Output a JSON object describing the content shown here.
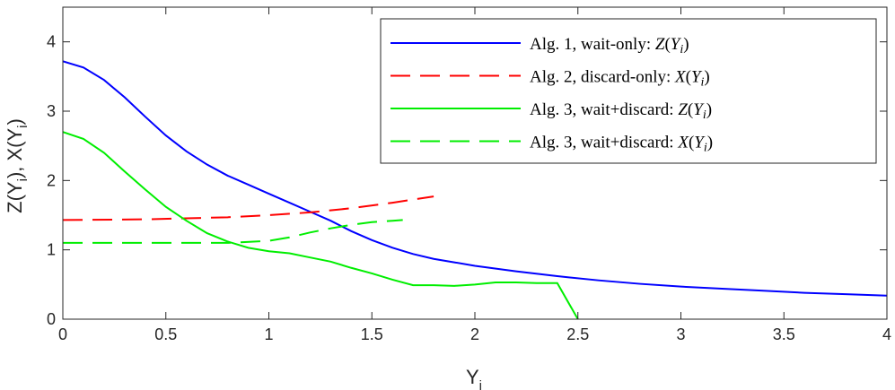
{
  "chart_data": {
    "type": "line",
    "title": "",
    "xlabel": "Y_i",
    "ylabel": "Z(Y_i), X(Y_i)",
    "xlim": [
      0,
      4
    ],
    "ylim": [
      0,
      4.5
    ],
    "xticks": [
      0,
      0.5,
      1,
      1.5,
      2,
      2.5,
      3,
      3.5,
      4
    ],
    "xtick_labels": [
      "0",
      "0.5",
      "1",
      "1.5",
      "2",
      "2.5",
      "3",
      "3.5",
      "4"
    ],
    "yticks": [
      0,
      1,
      2,
      3,
      4
    ],
    "ytick_labels": [
      "0",
      "1",
      "2",
      "3",
      "4"
    ],
    "grid": false,
    "legend_position": "top-right",
    "series": [
      {
        "name": "Alg. 1, wait-only: Z(Y_i)",
        "color": "#0000ff",
        "dash": "solid",
        "x": [
          0,
          0.1,
          0.2,
          0.3,
          0.4,
          0.5,
          0.6,
          0.7,
          0.8,
          0.9,
          1.0,
          1.1,
          1.2,
          1.3,
          1.4,
          1.5,
          1.6,
          1.7,
          1.8,
          1.9,
          2.0,
          2.2,
          2.4,
          2.6,
          2.8,
          3.0,
          3.2,
          3.4,
          3.6,
          3.8,
          4.0
        ],
        "y": [
          3.72,
          3.63,
          3.45,
          3.2,
          2.92,
          2.65,
          2.42,
          2.23,
          2.07,
          1.94,
          1.81,
          1.68,
          1.55,
          1.42,
          1.27,
          1.14,
          1.03,
          0.94,
          0.87,
          0.82,
          0.77,
          0.69,
          0.62,
          0.56,
          0.51,
          0.47,
          0.44,
          0.41,
          0.38,
          0.36,
          0.34
        ]
      },
      {
        "name": "Alg. 2, discard-only: X(Y_i)",
        "color": "#ff0000",
        "dash": "dashed",
        "x": [
          0,
          0.4,
          0.8,
          1.0,
          1.2,
          1.4,
          1.6,
          1.8
        ],
        "y": [
          1.43,
          1.44,
          1.47,
          1.5,
          1.54,
          1.6,
          1.68,
          1.77
        ]
      },
      {
        "name": "Alg. 3, wait+discard: Z(Y_i)",
        "color": "#00ee00",
        "dash": "solid",
        "x": [
          0,
          0.1,
          0.2,
          0.3,
          0.4,
          0.5,
          0.6,
          0.7,
          0.8,
          0.9,
          1.0,
          1.1,
          1.2,
          1.3,
          1.4,
          1.5,
          1.6,
          1.7,
          1.8,
          1.9,
          2.0,
          2.1,
          2.2,
          2.3,
          2.4,
          2.5
        ],
        "y": [
          2.7,
          2.6,
          2.4,
          2.13,
          1.87,
          1.62,
          1.42,
          1.24,
          1.12,
          1.03,
          0.98,
          0.95,
          0.89,
          0.83,
          0.74,
          0.66,
          0.57,
          0.49,
          0.49,
          0.48,
          0.5,
          0.53,
          0.53,
          0.52,
          0.52,
          0.0
        ]
      },
      {
        "name": "Alg. 3, wait+discard: X(Y_i)",
        "color": "#00ee00",
        "dash": "dashed",
        "x": [
          0,
          0.4,
          0.8,
          1.0,
          1.1,
          1.2,
          1.3,
          1.4,
          1.5,
          1.6,
          1.65
        ],
        "y": [
          1.1,
          1.1,
          1.1,
          1.13,
          1.18,
          1.25,
          1.31,
          1.36,
          1.4,
          1.42,
          1.43
        ]
      }
    ]
  }
}
